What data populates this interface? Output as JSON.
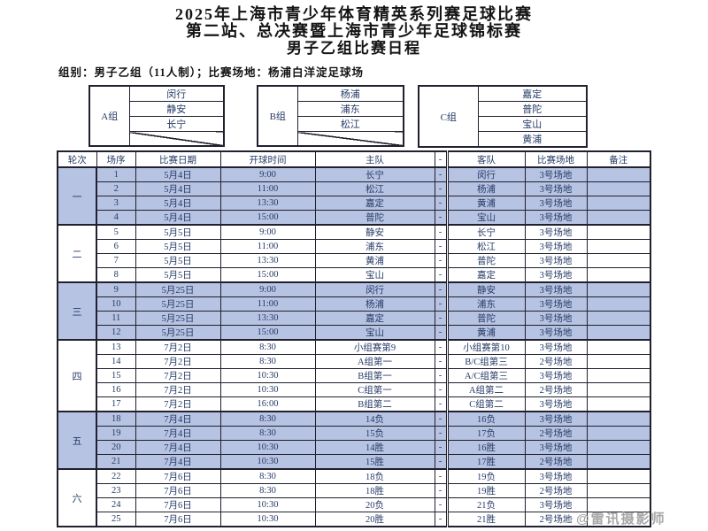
{
  "document": {
    "title_lines": [
      "2025年上海市青少年体育精英系列赛足球比赛",
      "第二站、总决赛暨上海市青少年足球锦标赛",
      "男子乙组比赛日程"
    ],
    "info_line": "组别：男子乙组（11人制）；比赛场地：杨浦白洋淀足球场"
  },
  "groups": [
    {
      "label": "A组",
      "teams": [
        "闵行",
        "静安",
        "长宁",
        ""
      ]
    },
    {
      "label": "B组",
      "teams": [
        "杨浦",
        "浦东",
        "松江",
        ""
      ]
    },
    {
      "label": "C组",
      "teams": [
        "嘉定",
        "普陀",
        "宝山",
        "黄浦"
      ]
    }
  ],
  "schedule": {
    "headers": [
      "轮次",
      "场序",
      "比赛日期",
      "开球时间",
      "主队",
      "-",
      "客队",
      "比赛场地",
      "备注"
    ],
    "rounds": [
      {
        "label": "一",
        "highlighted": true,
        "matches": [
          {
            "no": "1",
            "date": "5月4日",
            "time": "9:00",
            "home": "长宁",
            "sep": "-",
            "away": "闵行",
            "venue": "3号场地",
            "note": ""
          },
          {
            "no": "2",
            "date": "5月4日",
            "time": "11:00",
            "home": "松江",
            "sep": "-",
            "away": "杨浦",
            "venue": "3号场地",
            "note": ""
          },
          {
            "no": "3",
            "date": "5月4日",
            "time": "13:30",
            "home": "嘉定",
            "sep": "-",
            "away": "黄浦",
            "venue": "3号场地",
            "note": ""
          },
          {
            "no": "4",
            "date": "5月4日",
            "time": "15:00",
            "home": "普陀",
            "sep": "-",
            "away": "宝山",
            "venue": "3号场地",
            "note": ""
          }
        ]
      },
      {
        "label": "二",
        "highlighted": false,
        "matches": [
          {
            "no": "5",
            "date": "5月5日",
            "time": "9:00",
            "home": "静安",
            "sep": "-",
            "away": "长宁",
            "venue": "3号场地",
            "note": ""
          },
          {
            "no": "6",
            "date": "5月5日",
            "time": "11:00",
            "home": "浦东",
            "sep": "-",
            "away": "松江",
            "venue": "3号场地",
            "note": ""
          },
          {
            "no": "7",
            "date": "5月5日",
            "time": "13:30",
            "home": "黄浦",
            "sep": "-",
            "away": "普陀",
            "venue": "3号场地",
            "note": ""
          },
          {
            "no": "8",
            "date": "5月5日",
            "time": "15:00",
            "home": "宝山",
            "sep": "-",
            "away": "嘉定",
            "venue": "3号场地",
            "note": ""
          }
        ]
      },
      {
        "label": "三",
        "highlighted": true,
        "matches": [
          {
            "no": "9",
            "date": "5月25日",
            "time": "9:00",
            "home": "闵行",
            "sep": "-",
            "away": "静安",
            "venue": "3号场地",
            "note": ""
          },
          {
            "no": "10",
            "date": "5月25日",
            "time": "11:00",
            "home": "杨浦",
            "sep": "-",
            "away": "浦东",
            "venue": "3号场地",
            "note": ""
          },
          {
            "no": "11",
            "date": "5月25日",
            "time": "13:30",
            "home": "嘉定",
            "sep": "-",
            "away": "普陀",
            "venue": "3号场地",
            "note": ""
          },
          {
            "no": "12",
            "date": "5月25日",
            "time": "15:00",
            "home": "宝山",
            "sep": "-",
            "away": "黄浦",
            "venue": "3号场地",
            "note": ""
          }
        ]
      },
      {
        "label": "四",
        "highlighted": false,
        "matches": [
          {
            "no": "13",
            "date": "7月2日",
            "time": "8:30",
            "home": "小组赛第9",
            "sep": "-",
            "away": "小组赛第10",
            "venue": "3号场地",
            "note": ""
          },
          {
            "no": "14",
            "date": "7月2日",
            "time": "8:30",
            "home": "A组第一",
            "sep": "-",
            "away": "B/C组第三",
            "venue": "2号场地",
            "note": ""
          },
          {
            "no": "15",
            "date": "7月2日",
            "time": "10:30",
            "home": "B组第一",
            "sep": "-",
            "away": "A/C组第三",
            "venue": "3号场地",
            "note": ""
          },
          {
            "no": "16",
            "date": "7月2日",
            "time": "10:30",
            "home": "C组第一",
            "sep": "-",
            "away": "A组第二",
            "venue": "2号场地",
            "note": ""
          },
          {
            "no": "17",
            "date": "7月2日",
            "time": "16:00",
            "home": "B组第二",
            "sep": "-",
            "away": "C组第二",
            "venue": "3号场地",
            "note": ""
          }
        ]
      },
      {
        "label": "五",
        "highlighted": true,
        "matches": [
          {
            "no": "18",
            "date": "7月4日",
            "time": "8:30",
            "home": "14负",
            "sep": "-",
            "away": "16负",
            "venue": "3号场地",
            "note": ""
          },
          {
            "no": "19",
            "date": "7月4日",
            "time": "8:30",
            "home": "15负",
            "sep": "-",
            "away": "17负",
            "venue": "2号场地",
            "note": ""
          },
          {
            "no": "20",
            "date": "7月4日",
            "time": "10:30",
            "home": "14胜",
            "sep": "-",
            "away": "16胜",
            "venue": "3号场地",
            "note": ""
          },
          {
            "no": "21",
            "date": "7月4日",
            "time": "10:30",
            "home": "15胜",
            "sep": "-",
            "away": "17胜",
            "venue": "2号场地",
            "note": ""
          }
        ]
      },
      {
        "label": "六",
        "highlighted": false,
        "matches": [
          {
            "no": "22",
            "date": "7月6日",
            "time": "8:30",
            "home": "18负",
            "sep": "-",
            "away": "19负",
            "venue": "3号场地",
            "note": ""
          },
          {
            "no": "23",
            "date": "7月6日",
            "time": "8:30",
            "home": "18胜",
            "sep": "-",
            "away": "19胜",
            "venue": "2号场地",
            "note": ""
          },
          {
            "no": "24",
            "date": "7月6日",
            "time": "10:30",
            "home": "20负",
            "sep": "-",
            "away": "21负",
            "venue": "3号场地",
            "note": ""
          },
          {
            "no": "25",
            "date": "7月6日",
            "time": "10:30",
            "home": "20胜",
            "sep": "-",
            "away": "21胜",
            "venue": "2号场地",
            "note": ""
          }
        ]
      }
    ]
  },
  "watermark": "@雷讯摄影师",
  "colors": {
    "highlight_row": "#b7c3e2",
    "table_text": "#253a66"
  }
}
